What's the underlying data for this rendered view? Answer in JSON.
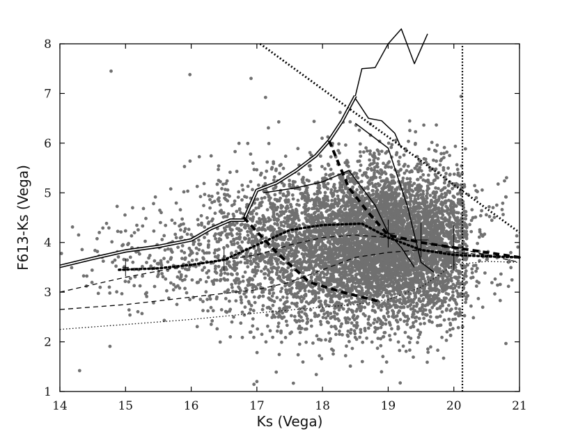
{
  "chart_data": {
    "type": "scatter",
    "xlabel": "Ks (Vega)",
    "ylabel": "F613-Ks (Vega)",
    "xlim": [
      14,
      21
    ],
    "ylim": [
      1,
      8
    ],
    "xticks": [
      "14",
      "15",
      "16",
      "17",
      "18",
      "19",
      "20",
      "21"
    ],
    "yticks": [
      "1",
      "2",
      "3",
      "4",
      "5",
      "6",
      "7",
      "8"
    ],
    "grid": false,
    "legend": "none",
    "scatter_color": "#707070",
    "scatter_description": "dense cloud of grey stellar points, densest near Ks 18.5-20, color 3-5",
    "scatter_cloud": [
      {
        "cx": 19.1,
        "cy": 4.0,
        "sx": 0.85,
        "sy": 0.75,
        "n": 4800
      },
      {
        "cx": 18.3,
        "cy": 3.9,
        "sx": 1.0,
        "sy": 0.9,
        "n": 1800
      },
      {
        "cx": 17.3,
        "cy": 3.9,
        "sx": 0.7,
        "sy": 0.75,
        "n": 550
      },
      {
        "cx": 15.8,
        "cy": 3.7,
        "sx": 0.9,
        "sy": 0.5,
        "n": 260
      }
    ],
    "scatter_outliers": [
      [
        14.78,
        7.45
      ],
      [
        15.98,
        7.38
      ],
      [
        14.3,
        1.42
      ],
      [
        17.0,
        1.2
      ]
    ],
    "series": [
      {
        "style": "solid-double",
        "x": [
          14.0,
          14.5,
          15.0,
          15.5,
          16.0,
          16.3,
          16.6,
          16.8,
          17.0,
          17.3,
          17.6,
          17.9,
          18.1,
          18.3,
          18.5
        ],
        "y": [
          3.52,
          3.68,
          3.83,
          3.92,
          4.05,
          4.28,
          4.45,
          4.45,
          5.05,
          5.2,
          5.45,
          5.75,
          6.05,
          6.45,
          6.95
        ]
      },
      {
        "style": "solid",
        "x": [
          18.5,
          18.6,
          18.8,
          19.0,
          19.2,
          19.4,
          19.6
        ],
        "y": [
          6.95,
          7.5,
          7.52,
          8.0,
          8.3,
          7.6,
          8.2
        ]
      },
      {
        "style": "solid",
        "x": [
          17.1,
          17.6,
          18.0,
          18.4,
          18.8,
          19.0,
          19.2,
          19.4
        ],
        "y": [
          5.0,
          5.1,
          5.22,
          5.45,
          4.75,
          4.2,
          3.9,
          3.5
        ]
      },
      {
        "style": "solid",
        "x": [
          18.5,
          18.7,
          18.9,
          19.1,
          19.2
        ],
        "y": [
          6.9,
          6.5,
          6.45,
          6.2,
          5.9
        ]
      },
      {
        "style": "solid",
        "x": [
          18.5,
          19.0,
          19.3,
          19.5,
          19.7
        ],
        "y": [
          6.4,
          5.9,
          4.7,
          3.6,
          3.4
        ]
      },
      {
        "style": "thick-dash",
        "x": [
          18.1,
          18.4,
          18.7,
          19.0,
          19.5,
          20.0,
          20.5,
          21.0
        ],
        "y": [
          6.05,
          5.1,
          4.6,
          4.15,
          4.0,
          3.9,
          3.8,
          3.7
        ]
      },
      {
        "style": "thick-dash",
        "x": [
          16.8,
          17.3,
          17.8,
          18.3,
          18.9
        ],
        "y": [
          4.5,
          3.8,
          3.2,
          3.0,
          2.8
        ]
      },
      {
        "style": "dotted-thick",
        "x": [
          14.9,
          15.5,
          16.0,
          16.5,
          17.0,
          17.5,
          18.0,
          18.6,
          19.0,
          19.5,
          20.0,
          20.5,
          21.0
        ],
        "y": [
          3.45,
          3.48,
          3.55,
          3.65,
          3.95,
          4.25,
          4.35,
          4.38,
          4.1,
          3.85,
          3.75,
          3.72,
          3.7
        ]
      },
      {
        "style": "dashed",
        "x": [
          14.0,
          15.0,
          16.0,
          17.0,
          17.5,
          18.0,
          18.5,
          19.0,
          19.5,
          20.0,
          21.0
        ],
        "y": [
          3.0,
          3.3,
          3.55,
          3.75,
          3.95,
          4.1,
          4.15,
          4.1,
          4.0,
          3.9,
          3.6
        ]
      },
      {
        "style": "dashed",
        "x": [
          14.0,
          15.0,
          16.0,
          17.0,
          17.5,
          18.0,
          18.5,
          19.0,
          19.5,
          20.0,
          21.0
        ],
        "y": [
          2.65,
          2.75,
          2.9,
          3.05,
          3.2,
          3.45,
          3.7,
          3.8,
          3.85,
          3.8,
          3.7
        ]
      },
      {
        "style": "dotted",
        "x": [
          14.0,
          15.0,
          16.0,
          17.0,
          18.0,
          18.5,
          19.0,
          19.5,
          20.0,
          20.5,
          21.0
        ],
        "y": [
          2.25,
          2.35,
          2.45,
          2.58,
          2.7,
          2.75,
          2.85,
          3.1,
          3.55,
          3.62,
          3.6
        ]
      },
      {
        "style": "limit-dotted",
        "x": [
          17.05,
          21.0
        ],
        "y": [
          8.0,
          4.2
        ]
      },
      {
        "style": "vertical-dotted",
        "x": [
          20.13,
          20.13
        ],
        "y": [
          1.0,
          8.0
        ]
      }
    ],
    "error_bars": [
      {
        "x": 15.0,
        "y": 3.5,
        "dx": 0.05,
        "dy": 0.18
      },
      {
        "x": 16.5,
        "y": 3.65,
        "dx": 0.06,
        "dy": 0.22
      },
      {
        "x": 19.0,
        "y": 4.18,
        "dx": 0.1,
        "dy": 0.28
      },
      {
        "x": 19.5,
        "y": 4.05,
        "dx": 0.12,
        "dy": 0.35
      },
      {
        "x": 20.0,
        "y": 3.9,
        "dx": 0.15,
        "dy": 0.45
      }
    ]
  }
}
